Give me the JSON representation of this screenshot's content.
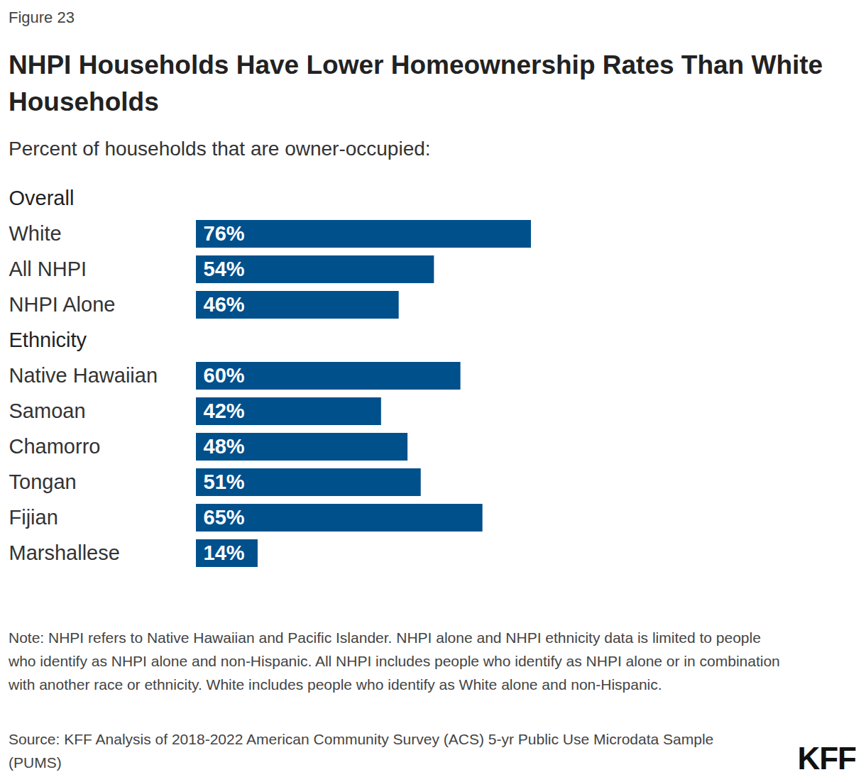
{
  "chart_data": {
    "type": "bar",
    "figure_label": "Figure 23",
    "title": "NHPI Households Have Lower Homeownership Rates Than White Households",
    "subtitle": "Percent of households that are owner-occupied:",
    "orientation": "horizontal",
    "color": "#00508c",
    "data_labels": true,
    "tick_labels": false,
    "xlim": [
      0,
      100
    ],
    "groups": [
      {
        "name": "Overall",
        "categories": [
          "White",
          "All NHPI",
          "NHPI Alone"
        ],
        "values": [
          76,
          54,
          46
        ],
        "value_labels": [
          "76%",
          "54%",
          "46%"
        ]
      },
      {
        "name": "Ethnicity",
        "categories": [
          "Native Hawaiian",
          "Samoan",
          "Chamorro",
          "Tongan",
          "Fijian",
          "Marshallese"
        ],
        "values": [
          60,
          42,
          48,
          51,
          65,
          14
        ],
        "value_labels": [
          "60%",
          "42%",
          "48%",
          "51%",
          "65%",
          "14%"
        ]
      }
    ],
    "note": "Note: NHPI refers to Native Hawaiian and Pacific Islander. NHPI alone and NHPI ethnicity data is limited to people who identify as NHPI alone and non-Hispanic. All NHPI includes people who identify as NHPI alone or in combination with another race or ethnicity. White includes people who identify as White alone and non-Hispanic.",
    "source": "Source: KFF Analysis of 2018-2022 American Community Survey (ACS) 5-yr Public Use Microdata Sample (PUMS)",
    "brand": "KFF"
  }
}
